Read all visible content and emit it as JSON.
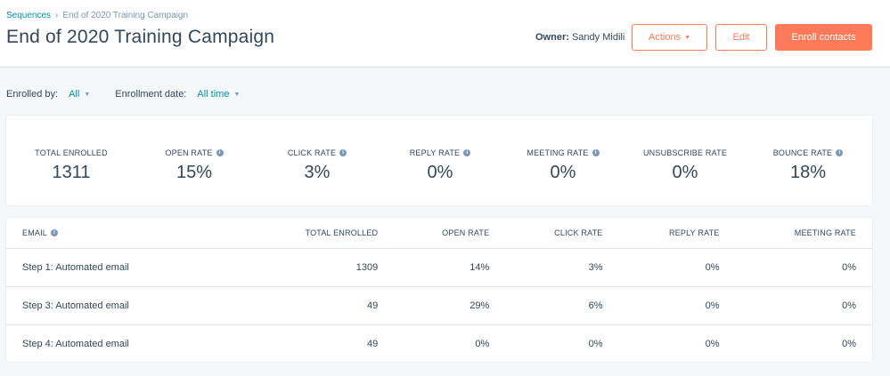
{
  "breadcrumb": {
    "root": "Sequences",
    "current": "End of 2020 Training Campaign"
  },
  "header": {
    "title": "End of 2020 Training Campaign",
    "owner_label": "Owner:",
    "owner_name": "Sandy Midili",
    "actions_label": "Actions",
    "edit_label": "Edit",
    "enroll_label": "Enroll contacts"
  },
  "filters": {
    "enrolled_by_label": "Enrolled by:",
    "enrolled_by_value": "All",
    "enrollment_date_label": "Enrollment date:",
    "enrollment_date_value": "All time"
  },
  "stats": [
    {
      "label": "TOTAL ENROLLED",
      "value": "1311",
      "info": false
    },
    {
      "label": "OPEN RATE",
      "value": "15%",
      "info": true
    },
    {
      "label": "CLICK RATE",
      "value": "3%",
      "info": true
    },
    {
      "label": "REPLY RATE",
      "value": "0%",
      "info": true
    },
    {
      "label": "MEETING RATE",
      "value": "0%",
      "info": true
    },
    {
      "label": "UNSUBSCRIBE RATE",
      "value": "0%",
      "info": false
    },
    {
      "label": "BOUNCE RATE",
      "value": "18%",
      "info": true
    }
  ],
  "table": {
    "columns": [
      "EMAIL",
      "TOTAL ENROLLED",
      "OPEN RATE",
      "CLICK RATE",
      "REPLY RATE",
      "MEETING RATE"
    ],
    "rows": [
      [
        "Step 1: Automated email",
        "1309",
        "14%",
        "3%",
        "0%",
        "0%"
      ],
      [
        "Step 3: Automated email",
        "49",
        "29%",
        "6%",
        "0%",
        "0%"
      ],
      [
        "Step 4: Automated email",
        "49",
        "0%",
        "0%",
        "0%",
        "0%"
      ]
    ]
  },
  "colors": {
    "accent": "#ff7a59",
    "link": "#0091ae",
    "text": "#33475b",
    "background": "#f5f8fa"
  },
  "icons": {
    "info": "info-icon",
    "caret": "caret-down-icon",
    "breadcrumb_separator": "chevron-right-icon"
  }
}
